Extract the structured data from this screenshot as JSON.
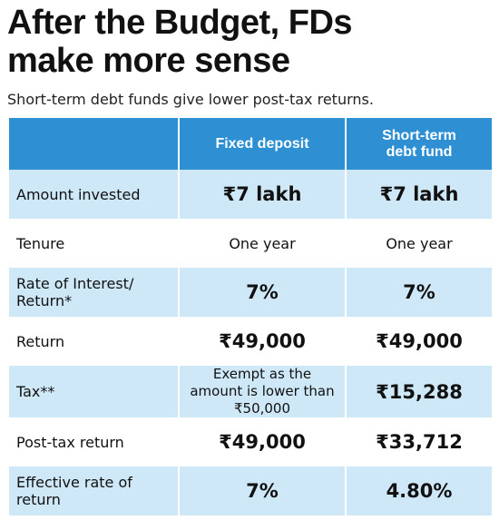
{
  "header": {
    "title": [
      "After the Budget, FDs",
      "make more sense"
    ],
    "subtitle": "Short-term debt funds give lower post-tax returns."
  },
  "table": {
    "columns": [
      "Fixed deposit",
      "Short-term debt fund"
    ],
    "rows": [
      [
        "Amount invested",
        "₹7 lakh",
        "₹7 lakh"
      ],
      [
        "Tenure",
        "One year",
        "One year"
      ],
      [
        "Rate of Interest/ Return*",
        "7%",
        "7%"
      ],
      [
        "Return",
        "₹49,000",
        "₹49,000"
      ],
      [
        "Tax**",
        "Exempt as the amount is lower than ₹50,000",
        "₹15,288"
      ],
      [
        "Post-tax return",
        "₹49,000",
        "₹33,712"
      ],
      [
        "Effective rate of return",
        "7%",
        "4.80%"
      ]
    ]
  }
}
